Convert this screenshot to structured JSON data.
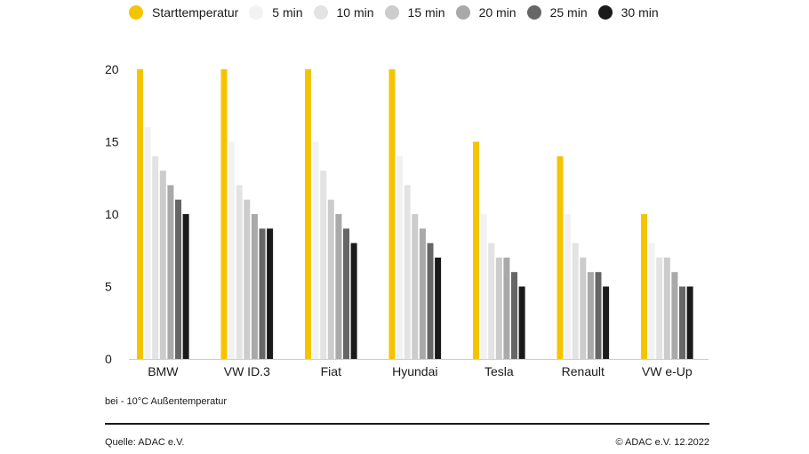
{
  "chart_data": {
    "type": "bar",
    "categories": [
      "BMW",
      "VW ID.3",
      "Fiat",
      "Hyundai",
      "Tesla",
      "Renault",
      "VW e-Up"
    ],
    "ylim": [
      0,
      20
    ],
    "yticks": [
      0,
      5,
      10,
      15,
      20
    ],
    "grid": false,
    "legend_position": "top",
    "series": [
      {
        "name": "Starttemperatur",
        "color": "#f5c400",
        "values": [
          20,
          20,
          20,
          20,
          15,
          14,
          10
        ]
      },
      {
        "name": "5 min",
        "color": "#f2f2f2",
        "values": [
          16,
          15,
          15,
          14,
          10,
          10,
          8
        ]
      },
      {
        "name": "10 min",
        "color": "#e3e3e3",
        "values": [
          14,
          12,
          13,
          12,
          8,
          8,
          7
        ]
      },
      {
        "name": "15 min",
        "color": "#cccccc",
        "values": [
          13,
          11,
          11,
          10,
          7,
          7,
          7
        ]
      },
      {
        "name": "20 min",
        "color": "#a9a9a9",
        "values": [
          12,
          10,
          10,
          9,
          7,
          6,
          6
        ]
      },
      {
        "name": "25 min",
        "color": "#666666",
        "values": [
          11,
          9,
          9,
          8,
          6,
          6,
          5
        ]
      },
      {
        "name": "30 min",
        "color": "#1a1a1a",
        "values": [
          10,
          9,
          8,
          7,
          5,
          5,
          5
        ]
      }
    ]
  },
  "footer": {
    "note": "bei - 10°C Außentemperatur",
    "source": "Quelle: ADAC e.V.",
    "copyright": "© ADAC e.V. 12.2022"
  }
}
